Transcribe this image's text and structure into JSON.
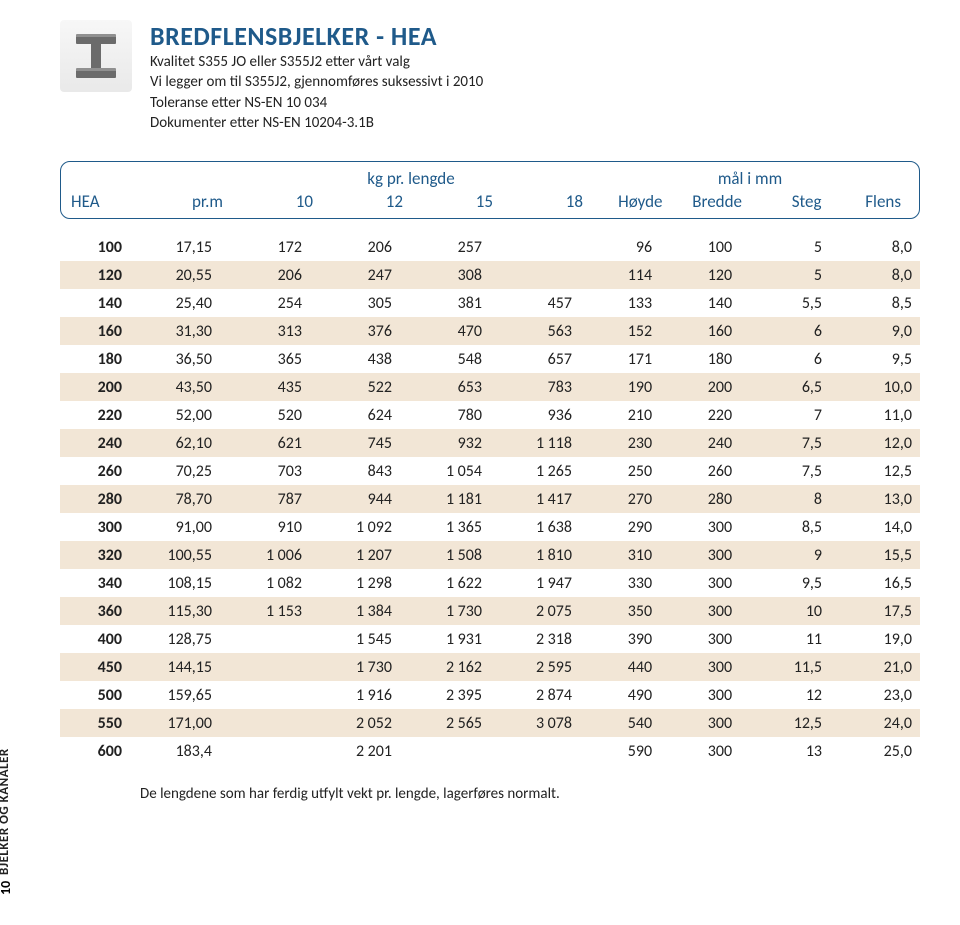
{
  "colors": {
    "accent": "#1f5a8a",
    "stripe": "#f2e6d6",
    "text": "#222222",
    "ibeam": "#6b6b6b"
  },
  "header": {
    "title": "BREDFLENSBJELKER - HEA",
    "line1": "Kvalitet S355 JO eller S355J2 etter vårt valg",
    "line2": "Vi legger om til S355J2, gjennomføres suksessivt i 2010",
    "line3": "Toleranse etter NS-EN 10 034",
    "line4": "Dokumenter etter NS-EN 10204-3.1B"
  },
  "table": {
    "group_kg": "kg pr. lengde",
    "group_mal": "mål i mm",
    "col_hea": "HEA",
    "col_prm": "pr.m",
    "col_10": "10",
    "col_12": "12",
    "col_15": "15",
    "col_18": "18",
    "col_hoyde": "Høyde",
    "col_bredde": "Bredde",
    "col_steg": "Steg",
    "col_flens": "Flens",
    "rows": [
      {
        "hea": "100",
        "prm": "17,15",
        "l10": "172",
        "l12": "206",
        "l15": "257",
        "l18": "",
        "h": "96",
        "b": "100",
        "s": "5",
        "f": "8,0"
      },
      {
        "hea": "120",
        "prm": "20,55",
        "l10": "206",
        "l12": "247",
        "l15": "308",
        "l18": "",
        "h": "114",
        "b": "120",
        "s": "5",
        "f": "8,0"
      },
      {
        "hea": "140",
        "prm": "25,40",
        "l10": "254",
        "l12": "305",
        "l15": "381",
        "l18": "457",
        "h": "133",
        "b": "140",
        "s": "5,5",
        "f": "8,5"
      },
      {
        "hea": "160",
        "prm": "31,30",
        "l10": "313",
        "l12": "376",
        "l15": "470",
        "l18": "563",
        "h": "152",
        "b": "160",
        "s": "6",
        "f": "9,0"
      },
      {
        "hea": "180",
        "prm": "36,50",
        "l10": "365",
        "l12": "438",
        "l15": "548",
        "l18": "657",
        "h": "171",
        "b": "180",
        "s": "6",
        "f": "9,5"
      },
      {
        "hea": "200",
        "prm": "43,50",
        "l10": "435",
        "l12": "522",
        "l15": "653",
        "l18": "783",
        "h": "190",
        "b": "200",
        "s": "6,5",
        "f": "10,0"
      },
      {
        "hea": "220",
        "prm": "52,00",
        "l10": "520",
        "l12": "624",
        "l15": "780",
        "l18": "936",
        "h": "210",
        "b": "220",
        "s": "7",
        "f": "11,0"
      },
      {
        "hea": "240",
        "prm": "62,10",
        "l10": "621",
        "l12": "745",
        "l15": "932",
        "l18": "1 118",
        "h": "230",
        "b": "240",
        "s": "7,5",
        "f": "12,0"
      },
      {
        "hea": "260",
        "prm": "70,25",
        "l10": "703",
        "l12": "843",
        "l15": "1 054",
        "l18": "1 265",
        "h": "250",
        "b": "260",
        "s": "7,5",
        "f": "12,5"
      },
      {
        "hea": "280",
        "prm": "78,70",
        "l10": "787",
        "l12": "944",
        "l15": "1 181",
        "l18": "1 417",
        "h": "270",
        "b": "280",
        "s": "8",
        "f": "13,0"
      },
      {
        "hea": "300",
        "prm": "91,00",
        "l10": "910",
        "l12": "1 092",
        "l15": "1 365",
        "l18": "1 638",
        "h": "290",
        "b": "300",
        "s": "8,5",
        "f": "14,0"
      },
      {
        "hea": "320",
        "prm": "100,55",
        "l10": "1 006",
        "l12": "1 207",
        "l15": "1 508",
        "l18": "1 810",
        "h": "310",
        "b": "300",
        "s": "9",
        "f": "15,5"
      },
      {
        "hea": "340",
        "prm": "108,15",
        "l10": "1 082",
        "l12": "1 298",
        "l15": "1 622",
        "l18": "1 947",
        "h": "330",
        "b": "300",
        "s": "9,5",
        "f": "16,5"
      },
      {
        "hea": "360",
        "prm": "115,30",
        "l10": "1 153",
        "l12": "1 384",
        "l15": "1 730",
        "l18": "2 075",
        "h": "350",
        "b": "300",
        "s": "10",
        "f": "17,5"
      },
      {
        "hea": "400",
        "prm": "128,75",
        "l10": "",
        "l12": "1 545",
        "l15": "1 931",
        "l18": "2 318",
        "h": "390",
        "b": "300",
        "s": "11",
        "f": "19,0"
      },
      {
        "hea": "450",
        "prm": "144,15",
        "l10": "",
        "l12": "1 730",
        "l15": "2 162",
        "l18": "2 595",
        "h": "440",
        "b": "300",
        "s": "11,5",
        "f": "21,0"
      },
      {
        "hea": "500",
        "prm": "159,65",
        "l10": "",
        "l12": "1 916",
        "l15": "2 395",
        "l18": "2 874",
        "h": "490",
        "b": "300",
        "s": "12",
        "f": "23,0"
      },
      {
        "hea": "550",
        "prm": "171,00",
        "l10": "",
        "l12": "2 052",
        "l15": "2 565",
        "l18": "3 078",
        "h": "540",
        "b": "300",
        "s": "12,5",
        "f": "24,0"
      },
      {
        "hea": "600",
        "prm": "183,4",
        "l10": "",
        "l12": "2 201",
        "l15": "",
        "l18": "",
        "h": "590",
        "b": "300",
        "s": "13",
        "f": "25,0"
      }
    ]
  },
  "footnote": "De lengdene som har ferdig utfylt vekt pr. lengde, lagerføres normalt.",
  "sidebar": {
    "section": "BJELKER OG KANALER",
    "page": "10"
  }
}
